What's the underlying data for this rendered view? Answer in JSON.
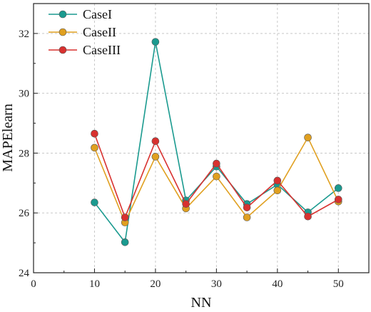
{
  "chart_data": {
    "type": "line",
    "title": "",
    "xlabel": "NN",
    "ylabel": "MAPElearn",
    "xlim": [
      0,
      55
    ],
    "ylim": [
      24,
      33
    ],
    "xticks": [
      "0",
      "10",
      "20",
      "30",
      "40",
      "50"
    ],
    "xtick_values": [
      0,
      10,
      20,
      30,
      40,
      50
    ],
    "yticks": [
      "24",
      "26",
      "28",
      "30",
      "32"
    ],
    "ytick_values": [
      24,
      26,
      28,
      30,
      32
    ],
    "grid": true,
    "legend_position": "top-left",
    "x": [
      10,
      15,
      20,
      25,
      30,
      35,
      40,
      45,
      50
    ],
    "series": [
      {
        "name": "CaseI",
        "color": "#1a9a8f",
        "values": [
          26.35,
          25.02,
          31.72,
          26.42,
          27.55,
          26.3,
          26.95,
          26.02,
          26.83
        ]
      },
      {
        "name": "CaseII",
        "color": "#e0a020",
        "values": [
          28.18,
          25.68,
          27.88,
          26.15,
          27.22,
          25.85,
          26.75,
          28.52,
          26.38
        ]
      },
      {
        "name": "CaseIII",
        "color": "#d8312f",
        "values": [
          28.65,
          25.85,
          28.4,
          26.3,
          27.65,
          26.18,
          27.08,
          25.88,
          26.45
        ]
      }
    ]
  }
}
